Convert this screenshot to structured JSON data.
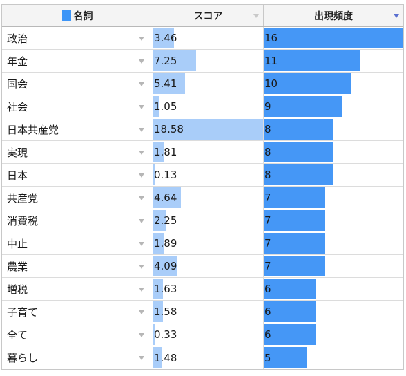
{
  "columns": {
    "name": "名詞",
    "score": "スコア",
    "frequency": "出現頻度"
  },
  "colors": {
    "swatch": "#3d95f7",
    "score_bar": "#a9cdf9",
    "frequency_bar": "#4597f6"
  },
  "sort": {
    "column": "frequency",
    "direction": "descending"
  },
  "rows": [
    {
      "name": "政治",
      "score": "3.46",
      "frequency": "16"
    },
    {
      "name": "年金",
      "score": "7.25",
      "frequency": "11"
    },
    {
      "name": "国会",
      "score": "5.41",
      "frequency": "10"
    },
    {
      "name": "社会",
      "score": "1.05",
      "frequency": "9"
    },
    {
      "name": "日本共産党",
      "score": "18.58",
      "frequency": "8"
    },
    {
      "name": "実現",
      "score": "1.81",
      "frequency": "8"
    },
    {
      "name": "日本",
      "score": "0.13",
      "frequency": "8"
    },
    {
      "name": "共産党",
      "score": "4.64",
      "frequency": "7"
    },
    {
      "name": "消費税",
      "score": "2.25",
      "frequency": "7"
    },
    {
      "name": "中止",
      "score": "1.89",
      "frequency": "7"
    },
    {
      "name": "農業",
      "score": "4.09",
      "frequency": "7"
    },
    {
      "name": "増税",
      "score": "1.63",
      "frequency": "6"
    },
    {
      "name": "子育て",
      "score": "1.58",
      "frequency": "6"
    },
    {
      "name": "全て",
      "score": "0.33",
      "frequency": "6"
    },
    {
      "name": "暮らし",
      "score": "1.48",
      "frequency": "5"
    }
  ]
}
